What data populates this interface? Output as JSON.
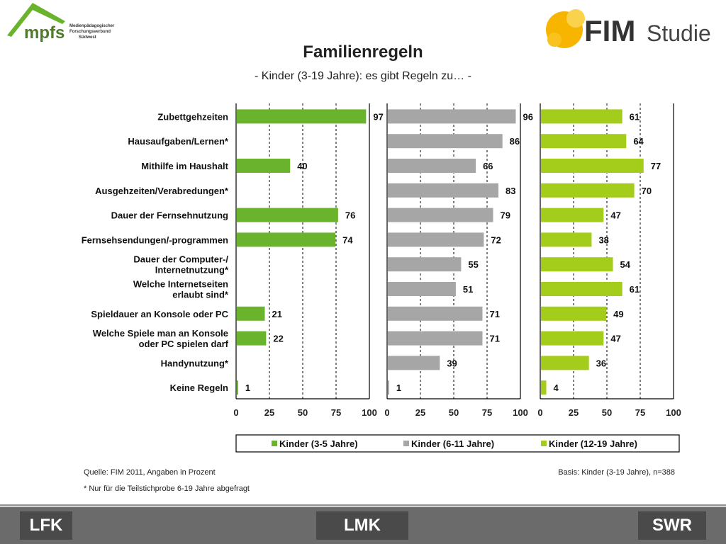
{
  "header": {
    "mpfs_logo": {
      "name": "mpfs",
      "lines": [
        "Medienpädagogischer",
        "Forschungsverbund",
        "Südwest"
      ]
    },
    "fim_logo": {
      "bold": "FIM",
      "light": "Studie"
    }
  },
  "chart_data": {
    "type": "bar",
    "orientation": "horizontal",
    "title": "Familienregeln",
    "subtitle": "- Kinder (3-19 Jahre): es gibt Regeln zu… -",
    "categories": [
      "Zubettgehzeiten",
      "Hausaufgaben/Lernen*",
      "Mithilfe im Haushalt",
      "Ausgehzeiten/Verabredungen*",
      "Dauer der Fernsehnutzung",
      "Fernsehsendungen/-programmen",
      "Dauer der Computer-/ Internetnutzung*",
      "Welche Internetseiten erlaubt sind*",
      "Spieldauer an Konsole oder PC",
      "Welche Spiele man an Konsole oder PC spielen darf",
      "Handynutzung*",
      "Keine Regeln"
    ],
    "category_lines": [
      [
        "Zubettgehzeiten"
      ],
      [
        "Hausaufgaben/Lernen*"
      ],
      [
        "Mithilfe im Haushalt"
      ],
      [
        "Ausgehzeiten/Verabredungen*"
      ],
      [
        "Dauer der Fernsehnutzung"
      ],
      [
        "Fernsehsendungen/-programmen"
      ],
      [
        "Dauer der Computer-/",
        "Internetnutzung*"
      ],
      [
        "Welche Internetseiten",
        "erlaubt sind*"
      ],
      [
        "Spieldauer an Konsole oder PC"
      ],
      [
        "Welche Spiele man an Konsole",
        "oder PC spielen darf"
      ],
      [
        "Handynutzung*"
      ],
      [
        "Keine Regeln"
      ]
    ],
    "series": [
      {
        "name": "Kinder (3-5 Jahre)",
        "color": "#6ab42d",
        "values": [
          97,
          null,
          40,
          null,
          76,
          74,
          null,
          null,
          21,
          22,
          null,
          1
        ]
      },
      {
        "name": "Kinder (6-11 Jahre)",
        "color": "#a6a6a6",
        "values": [
          96,
          86,
          66,
          83,
          79,
          72,
          55,
          51,
          71,
          71,
          39,
          1
        ]
      },
      {
        "name": "Kinder (12-19 Jahre)",
        "color": "#a4cc1a",
        "values": [
          61,
          64,
          77,
          70,
          47,
          38,
          54,
          61,
          49,
          47,
          36,
          4
        ]
      }
    ],
    "xlim": [
      0,
      100
    ],
    "xticks": [
      0,
      25,
      50,
      75,
      100
    ],
    "grid": true,
    "legend_position": "bottom"
  },
  "footer": {
    "source": "Quelle: FIM 2011, Angaben in Prozent",
    "basis": "Basis: Kinder (3-19 Jahre), n=388",
    "note": "* Nur für die Teilstichprobe 6-19 Jahre abgefragt",
    "sponsors": [
      "LFK",
      "LMK",
      "SWR"
    ]
  }
}
